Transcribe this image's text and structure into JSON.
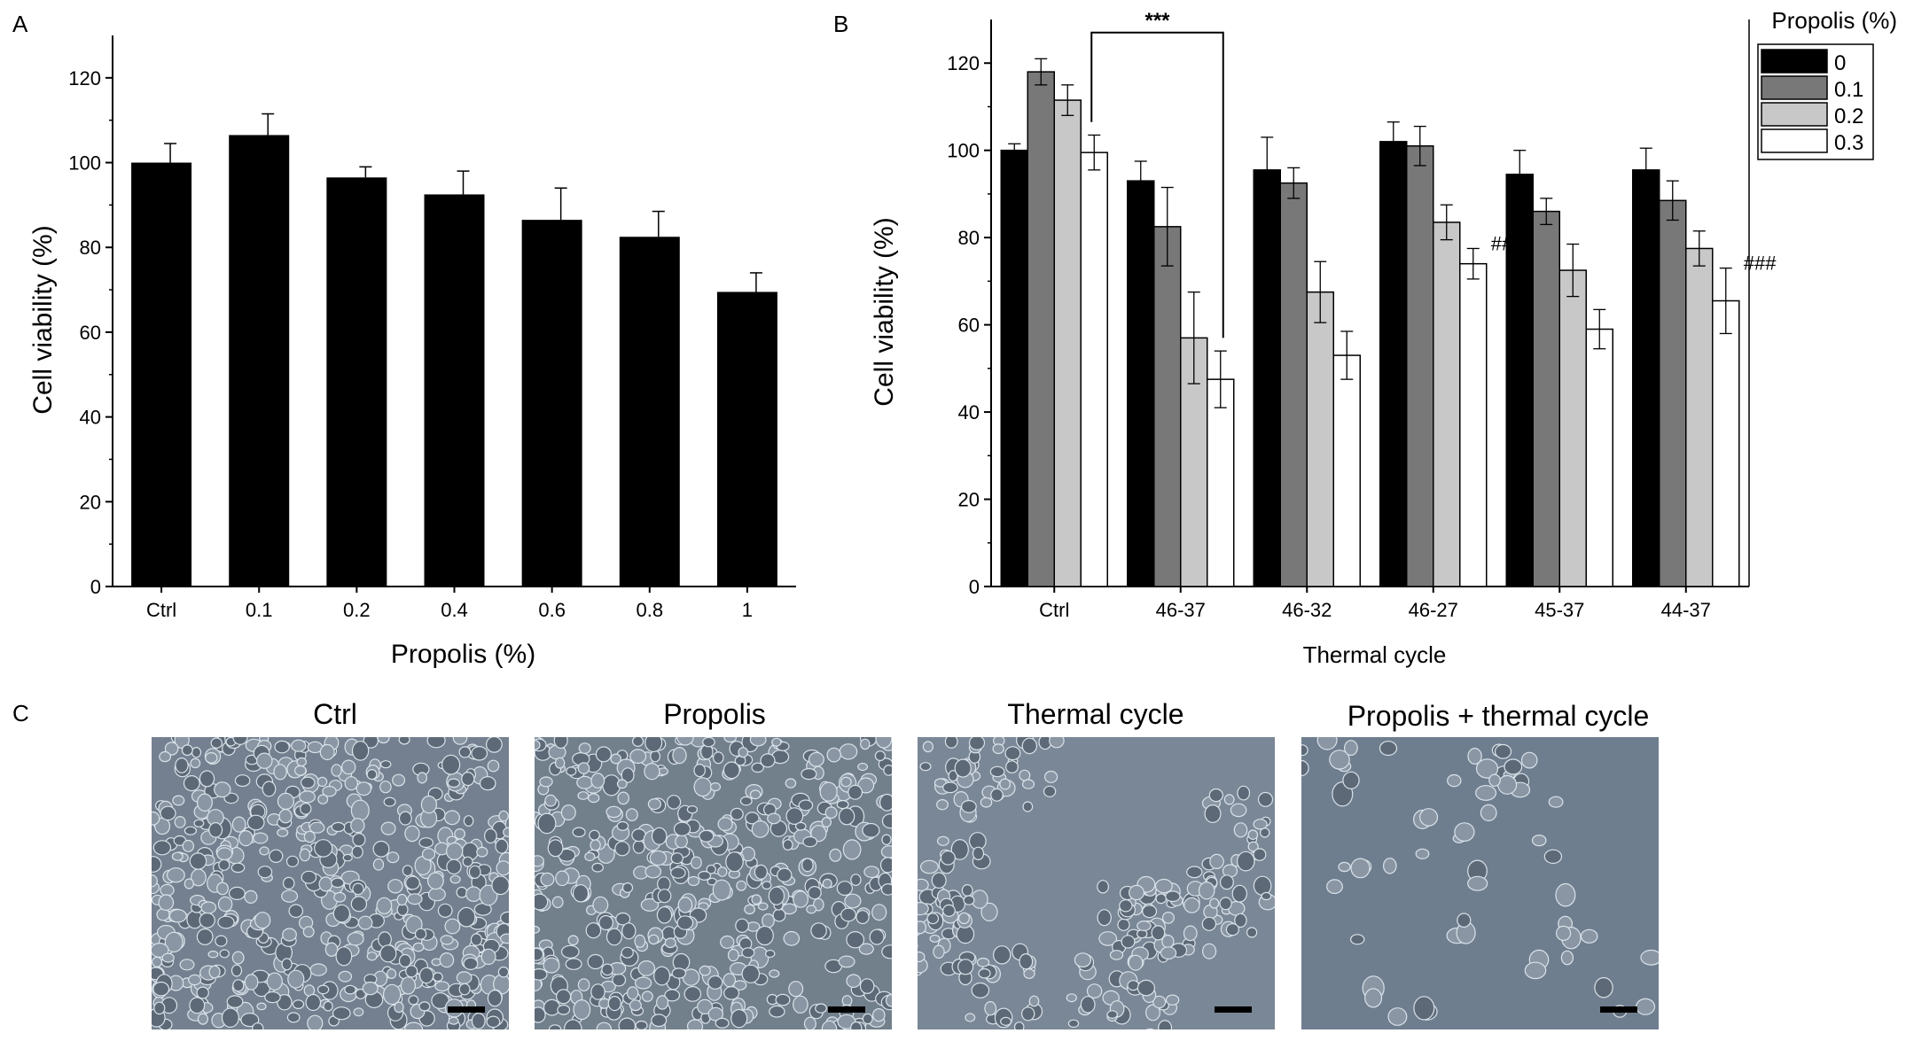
{
  "panels": {
    "a_label": "A",
    "b_label": "B",
    "c_label": "C"
  },
  "chart_data": [
    {
      "type": "bar",
      "panel": "A",
      "categories": [
        "Ctrl",
        "0.1",
        "0.2",
        "0.4",
        "0.6",
        "0.8",
        "1"
      ],
      "values": [
        100,
        106.5,
        96.5,
        92.5,
        86.5,
        82.5,
        69.5
      ],
      "errors": [
        4.5,
        5,
        2.5,
        5.5,
        7.5,
        6,
        4.5
      ],
      "xlabel": "Propolis (%)",
      "ylabel": "Cell viability (%)",
      "ylim": [
        0,
        130
      ],
      "yticks": [
        0,
        20,
        40,
        60,
        80,
        100,
        120
      ],
      "bar_color": "#000000"
    },
    {
      "type": "bar",
      "panel": "B",
      "categories": [
        "Ctrl",
        "46-37",
        "46-32",
        "46-27",
        "45-37",
        "44-37"
      ],
      "xlabel": "Thermal cycle",
      "ylabel": "Cell viability (%)",
      "ylim": [
        0,
        130
      ],
      "yticks": [
        0,
        20,
        40,
        60,
        80,
        100,
        120
      ],
      "legend_title": "Propolis (%)",
      "legend_position": "top-right",
      "series": [
        {
          "name": "0",
          "color": "#000000",
          "values": [
            100,
            93,
            95.5,
            102,
            94.5,
            95.5
          ],
          "errors": [
            1.5,
            4.5,
            7.5,
            4.5,
            5.5,
            5
          ]
        },
        {
          "name": "0.1",
          "color": "#787878",
          "values": [
            118,
            82.5,
            92.5,
            101,
            86,
            88.5
          ],
          "errors": [
            3,
            9,
            3.5,
            4.5,
            3,
            4.5
          ]
        },
        {
          "name": "0.2",
          "color": "#c8c8c8",
          "values": [
            111.5,
            57,
            67.5,
            83.5,
            72.5,
            77.5
          ],
          "errors": [
            3.5,
            10.5,
            7,
            4,
            6,
            4
          ]
        },
        {
          "name": "0.3",
          "color": "#ffffff",
          "values": [
            99.5,
            47.5,
            53,
            74,
            59,
            65.5
          ],
          "errors": [
            4,
            6.5,
            5.5,
            3.5,
            4.5,
            7.5
          ]
        }
      ],
      "annotations": [
        {
          "text": "***",
          "from_category": "Ctrl",
          "to_category": "46-37",
          "series": "0.3"
        },
        {
          "text": "###",
          "category": "46-27",
          "series": "0.3"
        },
        {
          "text": "###",
          "category": "44-37",
          "series": "0.3"
        }
      ]
    }
  ],
  "micrographs": [
    {
      "title": "Ctrl",
      "color": "#74808f"
    },
    {
      "title": "Propolis",
      "color": "#72808c"
    },
    {
      "title": "Thermal cycle",
      "color": "#7a8796"
    },
    {
      "title": "Propolis + thermal cycle",
      "color": "#6f7e8f"
    }
  ]
}
